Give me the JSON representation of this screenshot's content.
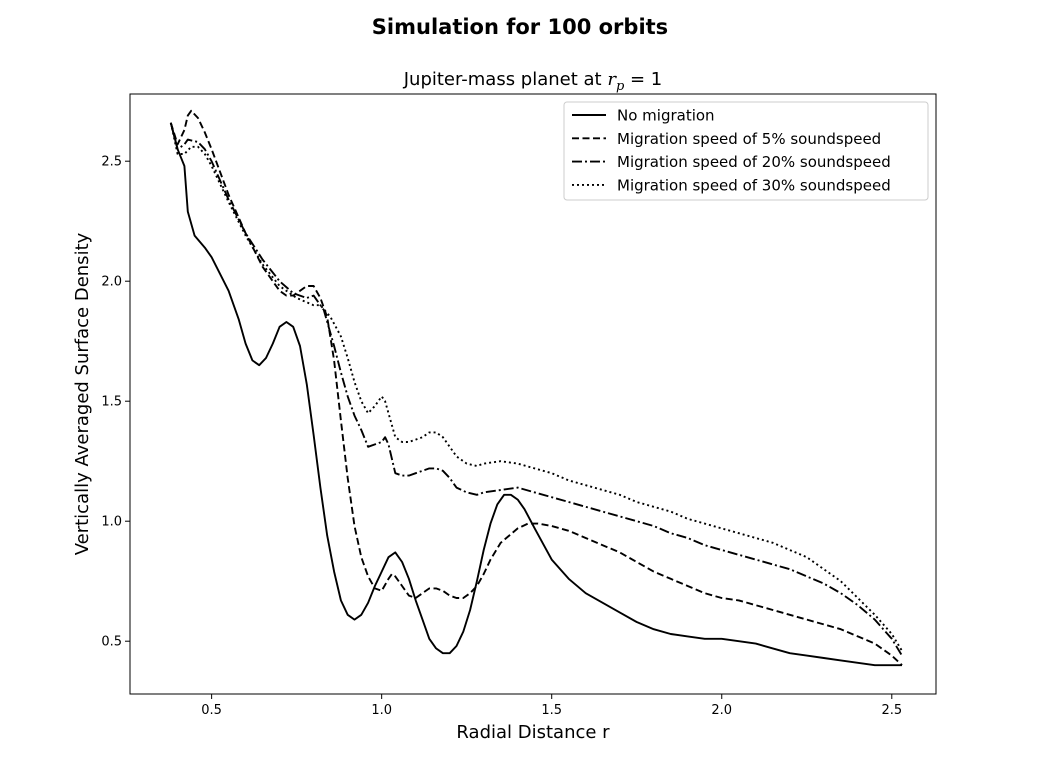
{
  "chart_data": {
    "type": "line",
    "title": "Simulation for 100 orbits",
    "subtitle_prefix": "Jupiter-mass planet at ",
    "subtitle_math_symbol": "r",
    "subtitle_math_subscript": "p",
    "subtitle_math_suffix": " = 1",
    "xlabel": "Radial Distance r",
    "ylabel": "Vertically Averaged Surface Density",
    "xlim": [
      0.26,
      2.63
    ],
    "ylim": [
      0.28,
      2.78
    ],
    "xticks": [
      0.5,
      1.0,
      1.5,
      2.0,
      2.5
    ],
    "xtick_labels": [
      "0.5",
      "1.0",
      "1.5",
      "2.0",
      "2.5"
    ],
    "yticks": [
      0.5,
      1.0,
      1.5,
      2.0,
      2.5
    ],
    "ytick_labels": [
      "0.5",
      "1.0",
      "1.5",
      "2.0",
      "2.5"
    ],
    "grid": false,
    "legend_position": "top-right",
    "line_color": "#000000",
    "series": [
      {
        "name": "No migration",
        "style": "solid",
        "points": [
          [
            0.38,
            2.66
          ],
          [
            0.4,
            2.55
          ],
          [
            0.42,
            2.48
          ],
          [
            0.43,
            2.29
          ],
          [
            0.45,
            2.19
          ],
          [
            0.48,
            2.14
          ],
          [
            0.5,
            2.1
          ],
          [
            0.55,
            1.96
          ],
          [
            0.58,
            1.84
          ],
          [
            0.6,
            1.74
          ],
          [
            0.62,
            1.67
          ],
          [
            0.64,
            1.65
          ],
          [
            0.66,
            1.68
          ],
          [
            0.68,
            1.74
          ],
          [
            0.7,
            1.81
          ],
          [
            0.72,
            1.83
          ],
          [
            0.74,
            1.81
          ],
          [
            0.76,
            1.73
          ],
          [
            0.78,
            1.57
          ],
          [
            0.8,
            1.36
          ],
          [
            0.82,
            1.14
          ],
          [
            0.84,
            0.94
          ],
          [
            0.86,
            0.79
          ],
          [
            0.88,
            0.67
          ],
          [
            0.9,
            0.61
          ],
          [
            0.92,
            0.59
          ],
          [
            0.94,
            0.61
          ],
          [
            0.96,
            0.66
          ],
          [
            0.98,
            0.73
          ],
          [
            1.0,
            0.79
          ],
          [
            1.02,
            0.85
          ],
          [
            1.04,
            0.87
          ],
          [
            1.06,
            0.83
          ],
          [
            1.08,
            0.76
          ],
          [
            1.1,
            0.67
          ],
          [
            1.12,
            0.59
          ],
          [
            1.14,
            0.51
          ],
          [
            1.16,
            0.47
          ],
          [
            1.18,
            0.45
          ],
          [
            1.2,
            0.45
          ],
          [
            1.22,
            0.48
          ],
          [
            1.24,
            0.54
          ],
          [
            1.26,
            0.63
          ],
          [
            1.28,
            0.75
          ],
          [
            1.3,
            0.88
          ],
          [
            1.32,
            0.99
          ],
          [
            1.34,
            1.07
          ],
          [
            1.36,
            1.11
          ],
          [
            1.38,
            1.11
          ],
          [
            1.4,
            1.09
          ],
          [
            1.42,
            1.05
          ],
          [
            1.45,
            0.97
          ],
          [
            1.5,
            0.84
          ],
          [
            1.55,
            0.76
          ],
          [
            1.6,
            0.7
          ],
          [
            1.65,
            0.66
          ],
          [
            1.7,
            0.62
          ],
          [
            1.75,
            0.58
          ],
          [
            1.8,
            0.55
          ],
          [
            1.85,
            0.53
          ],
          [
            1.9,
            0.52
          ],
          [
            1.95,
            0.51
          ],
          [
            2.0,
            0.51
          ],
          [
            2.05,
            0.5
          ],
          [
            2.1,
            0.49
          ],
          [
            2.15,
            0.47
          ],
          [
            2.2,
            0.45
          ],
          [
            2.25,
            0.44
          ],
          [
            2.3,
            0.43
          ],
          [
            2.35,
            0.42
          ],
          [
            2.4,
            0.41
          ],
          [
            2.45,
            0.4
          ],
          [
            2.5,
            0.4
          ],
          [
            2.53,
            0.4
          ]
        ]
      },
      {
        "name": "Migration speed of 5% soundspeed",
        "style": "dashed",
        "points": [
          [
            0.38,
            2.66
          ],
          [
            0.4,
            2.57
          ],
          [
            0.42,
            2.63
          ],
          [
            0.43,
            2.69
          ],
          [
            0.44,
            2.71
          ],
          [
            0.46,
            2.68
          ],
          [
            0.48,
            2.62
          ],
          [
            0.5,
            2.55
          ],
          [
            0.55,
            2.36
          ],
          [
            0.6,
            2.2
          ],
          [
            0.65,
            2.06
          ],
          [
            0.7,
            1.96
          ],
          [
            0.72,
            1.94
          ],
          [
            0.74,
            1.94
          ],
          [
            0.76,
            1.96
          ],
          [
            0.78,
            1.98
          ],
          [
            0.8,
            1.98
          ],
          [
            0.82,
            1.93
          ],
          [
            0.84,
            1.85
          ],
          [
            0.86,
            1.67
          ],
          [
            0.88,
            1.42
          ],
          [
            0.9,
            1.18
          ],
          [
            0.92,
            0.98
          ],
          [
            0.94,
            0.85
          ],
          [
            0.96,
            0.77
          ],
          [
            0.98,
            0.72
          ],
          [
            1.0,
            0.71
          ],
          [
            1.02,
            0.76
          ],
          [
            1.03,
            0.78
          ],
          [
            1.04,
            0.77
          ],
          [
            1.06,
            0.73
          ],
          [
            1.08,
            0.69
          ],
          [
            1.1,
            0.68
          ],
          [
            1.12,
            0.7
          ],
          [
            1.14,
            0.72
          ],
          [
            1.16,
            0.72
          ],
          [
            1.18,
            0.71
          ],
          [
            1.2,
            0.69
          ],
          [
            1.22,
            0.68
          ],
          [
            1.24,
            0.68
          ],
          [
            1.26,
            0.7
          ],
          [
            1.28,
            0.73
          ],
          [
            1.3,
            0.78
          ],
          [
            1.32,
            0.84
          ],
          [
            1.35,
            0.91
          ],
          [
            1.4,
            0.97
          ],
          [
            1.43,
            0.99
          ],
          [
            1.46,
            0.99
          ],
          [
            1.5,
            0.98
          ],
          [
            1.55,
            0.96
          ],
          [
            1.6,
            0.93
          ],
          [
            1.65,
            0.9
          ],
          [
            1.7,
            0.87
          ],
          [
            1.75,
            0.83
          ],
          [
            1.8,
            0.79
          ],
          [
            1.85,
            0.76
          ],
          [
            1.9,
            0.73
          ],
          [
            1.95,
            0.7
          ],
          [
            2.0,
            0.68
          ],
          [
            2.05,
            0.67
          ],
          [
            2.1,
            0.65
          ],
          [
            2.15,
            0.63
          ],
          [
            2.2,
            0.61
          ],
          [
            2.25,
            0.59
          ],
          [
            2.3,
            0.57
          ],
          [
            2.35,
            0.55
          ],
          [
            2.4,
            0.52
          ],
          [
            2.45,
            0.49
          ],
          [
            2.5,
            0.44
          ],
          [
            2.53,
            0.4
          ]
        ]
      },
      {
        "name": "Migration speed of 20% soundspeed",
        "style": "dashdot",
        "points": [
          [
            0.38,
            2.66
          ],
          [
            0.4,
            2.55
          ],
          [
            0.42,
            2.57
          ],
          [
            0.43,
            2.59
          ],
          [
            0.46,
            2.58
          ],
          [
            0.48,
            2.55
          ],
          [
            0.5,
            2.5
          ],
          [
            0.55,
            2.34
          ],
          [
            0.6,
            2.2
          ],
          [
            0.65,
            2.09
          ],
          [
            0.7,
            2.0
          ],
          [
            0.74,
            1.95
          ],
          [
            0.78,
            1.93
          ],
          [
            0.8,
            1.94
          ],
          [
            0.83,
            1.88
          ],
          [
            0.86,
            1.73
          ],
          [
            0.88,
            1.62
          ],
          [
            0.9,
            1.52
          ],
          [
            0.92,
            1.44
          ],
          [
            0.94,
            1.38
          ],
          [
            0.96,
            1.31
          ],
          [
            0.98,
            1.32
          ],
          [
            1.0,
            1.33
          ],
          [
            1.01,
            1.35
          ],
          [
            1.02,
            1.32
          ],
          [
            1.04,
            1.2
          ],
          [
            1.06,
            1.19
          ],
          [
            1.08,
            1.19
          ],
          [
            1.1,
            1.2
          ],
          [
            1.12,
            1.21
          ],
          [
            1.14,
            1.22
          ],
          [
            1.16,
            1.22
          ],
          [
            1.18,
            1.21
          ],
          [
            1.2,
            1.18
          ],
          [
            1.22,
            1.14
          ],
          [
            1.25,
            1.12
          ],
          [
            1.28,
            1.11
          ],
          [
            1.3,
            1.12
          ],
          [
            1.35,
            1.13
          ],
          [
            1.4,
            1.14
          ],
          [
            1.45,
            1.12
          ],
          [
            1.5,
            1.1
          ],
          [
            1.55,
            1.08
          ],
          [
            1.6,
            1.06
          ],
          [
            1.65,
            1.04
          ],
          [
            1.7,
            1.02
          ],
          [
            1.75,
            1.0
          ],
          [
            1.8,
            0.98
          ],
          [
            1.85,
            0.95
          ],
          [
            1.9,
            0.93
          ],
          [
            1.95,
            0.9
          ],
          [
            2.0,
            0.88
          ],
          [
            2.05,
            0.86
          ],
          [
            2.1,
            0.84
          ],
          [
            2.15,
            0.82
          ],
          [
            2.2,
            0.8
          ],
          [
            2.25,
            0.77
          ],
          [
            2.3,
            0.74
          ],
          [
            2.35,
            0.7
          ],
          [
            2.4,
            0.65
          ],
          [
            2.45,
            0.59
          ],
          [
            2.5,
            0.51
          ],
          [
            2.53,
            0.44
          ]
        ]
      },
      {
        "name": "Migration speed of 30% soundspeed",
        "style": "dotted",
        "points": [
          [
            0.38,
            2.66
          ],
          [
            0.4,
            2.53
          ],
          [
            0.42,
            2.53
          ],
          [
            0.44,
            2.56
          ],
          [
            0.46,
            2.56
          ],
          [
            0.48,
            2.53
          ],
          [
            0.5,
            2.48
          ],
          [
            0.55,
            2.33
          ],
          [
            0.6,
            2.19
          ],
          [
            0.65,
            2.07
          ],
          [
            0.7,
            1.98
          ],
          [
            0.75,
            1.93
          ],
          [
            0.8,
            1.9
          ],
          [
            0.82,
            1.9
          ],
          [
            0.85,
            1.85
          ],
          [
            0.88,
            1.77
          ],
          [
            0.9,
            1.68
          ],
          [
            0.92,
            1.58
          ],
          [
            0.94,
            1.5
          ],
          [
            0.96,
            1.45
          ],
          [
            0.98,
            1.48
          ],
          [
            1.0,
            1.52
          ],
          [
            1.01,
            1.5
          ],
          [
            1.02,
            1.45
          ],
          [
            1.04,
            1.35
          ],
          [
            1.06,
            1.33
          ],
          [
            1.08,
            1.33
          ],
          [
            1.1,
            1.34
          ],
          [
            1.12,
            1.35
          ],
          [
            1.14,
            1.37
          ],
          [
            1.16,
            1.37
          ],
          [
            1.18,
            1.35
          ],
          [
            1.2,
            1.31
          ],
          [
            1.22,
            1.27
          ],
          [
            1.25,
            1.24
          ],
          [
            1.28,
            1.23
          ],
          [
            1.3,
            1.24
          ],
          [
            1.35,
            1.25
          ],
          [
            1.4,
            1.24
          ],
          [
            1.45,
            1.22
          ],
          [
            1.5,
            1.2
          ],
          [
            1.55,
            1.17
          ],
          [
            1.6,
            1.15
          ],
          [
            1.65,
            1.13
          ],
          [
            1.7,
            1.11
          ],
          [
            1.75,
            1.08
          ],
          [
            1.8,
            1.06
          ],
          [
            1.85,
            1.04
          ],
          [
            1.9,
            1.01
          ],
          [
            1.95,
            0.99
          ],
          [
            2.0,
            0.97
          ],
          [
            2.05,
            0.95
          ],
          [
            2.1,
            0.93
          ],
          [
            2.15,
            0.91
          ],
          [
            2.2,
            0.88
          ],
          [
            2.25,
            0.85
          ],
          [
            2.3,
            0.8
          ],
          [
            2.35,
            0.75
          ],
          [
            2.4,
            0.68
          ],
          [
            2.45,
            0.61
          ],
          [
            2.5,
            0.53
          ],
          [
            2.53,
            0.46
          ]
        ]
      }
    ]
  }
}
